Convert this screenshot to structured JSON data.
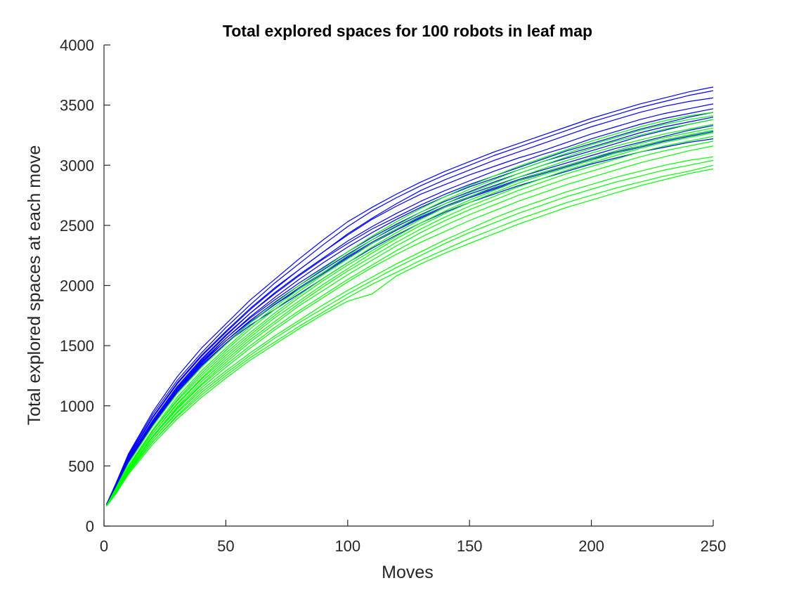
{
  "chart_data": {
    "type": "line",
    "title": "Total explored spaces for 100 robots in leaf map",
    "xlabel": "Moves",
    "ylabel": "Total explored spaces at each move",
    "xlim": [
      0,
      250
    ],
    "ylim": [
      0,
      4000
    ],
    "xticks": [
      0,
      50,
      100,
      150,
      200,
      250
    ],
    "yticks": [
      0,
      500,
      1000,
      1500,
      2000,
      2500,
      3000,
      3500,
      4000
    ],
    "grid": false,
    "legend": "none",
    "colors": {
      "blue": "#0000ff",
      "green": "#00ff00",
      "axis": "#262626"
    },
    "x": [
      1,
      5,
      10,
      20,
      30,
      40,
      50,
      60,
      70,
      80,
      90,
      100,
      110,
      120,
      130,
      140,
      150,
      160,
      170,
      180,
      190,
      200,
      210,
      220,
      230,
      240,
      250
    ],
    "series": [
      {
        "color": "blue",
        "values": [
          180,
          360,
          600,
          950,
          1240,
          1480,
          1680,
          1880,
          2050,
          2220,
          2380,
          2530,
          2650,
          2760,
          2860,
          2950,
          3030,
          3110,
          3180,
          3250,
          3320,
          3390,
          3450,
          3510,
          3560,
          3610,
          3650
        ]
      },
      {
        "color": "blue",
        "values": [
          180,
          350,
          590,
          930,
          1210,
          1440,
          1650,
          1840,
          2020,
          2180,
          2340,
          2490,
          2620,
          2730,
          2830,
          2920,
          3000,
          3080,
          3150,
          3220,
          3290,
          3360,
          3420,
          3480,
          3530,
          3580,
          3620
        ]
      },
      {
        "color": "blue",
        "values": [
          170,
          340,
          570,
          900,
          1180,
          1410,
          1610,
          1800,
          1970,
          2130,
          2280,
          2430,
          2560,
          2680,
          2790,
          2880,
          2960,
          3040,
          3110,
          3180,
          3250,
          3320,
          3380,
          3440,
          3490,
          3530,
          3560
        ]
      },
      {
        "color": "blue",
        "values": [
          180,
          355,
          580,
          910,
          1190,
          1420,
          1620,
          1810,
          1980,
          2130,
          2280,
          2420,
          2550,
          2660,
          2760,
          2840,
          2920,
          2990,
          3060,
          3120,
          3190,
          3260,
          3320,
          3380,
          3430,
          3470,
          3510
        ]
      },
      {
        "color": "blue",
        "values": [
          170,
          330,
          550,
          870,
          1150,
          1380,
          1580,
          1770,
          1940,
          2090,
          2230,
          2370,
          2490,
          2600,
          2700,
          2790,
          2870,
          2950,
          3020,
          3090,
          3150,
          3220,
          3280,
          3340,
          3390,
          3430,
          3470
        ]
      },
      {
        "color": "blue",
        "values": [
          180,
          345,
          560,
          880,
          1160,
          1390,
          1590,
          1770,
          1930,
          2080,
          2220,
          2350,
          2470,
          2570,
          2670,
          2760,
          2840,
          2910,
          2980,
          3050,
          3120,
          3180,
          3240,
          3300,
          3350,
          3400,
          3440
        ]
      },
      {
        "color": "blue",
        "values": [
          170,
          320,
          540,
          860,
          1130,
          1360,
          1560,
          1740,
          1900,
          2050,
          2190,
          2320,
          2440,
          2550,
          2650,
          2740,
          2820,
          2890,
          2960,
          3030,
          3090,
          3150,
          3210,
          3270,
          3320,
          3360,
          3400
        ]
      },
      {
        "color": "blue",
        "values": [
          180,
          340,
          560,
          870,
          1140,
          1370,
          1560,
          1730,
          1880,
          2020,
          2150,
          2280,
          2400,
          2510,
          2610,
          2700,
          2780,
          2860,
          2930,
          3000,
          3060,
          3120,
          3180,
          3240,
          3290,
          3340,
          3380
        ]
      },
      {
        "color": "blue",
        "values": [
          170,
          325,
          545,
          860,
          1130,
          1350,
          1540,
          1710,
          1860,
          2000,
          2130,
          2260,
          2380,
          2490,
          2590,
          2680,
          2760,
          2830,
          2900,
          2960,
          3020,
          3080,
          3140,
          3190,
          3240,
          3290,
          3330
        ]
      },
      {
        "color": "blue",
        "values": [
          180,
          335,
          555,
          870,
          1140,
          1360,
          1540,
          1700,
          1840,
          1970,
          2100,
          2230,
          2350,
          2460,
          2560,
          2650,
          2730,
          2800,
          2870,
          2930,
          2990,
          3050,
          3100,
          3150,
          3200,
          3240,
          3280
        ]
      },
      {
        "color": "blue",
        "values": [
          170,
          320,
          530,
          840,
          1110,
          1330,
          1520,
          1690,
          1840,
          1980,
          2110,
          2240,
          2360,
          2470,
          2570,
          2660,
          2740,
          2810,
          2880,
          2940,
          3000,
          3060,
          3110,
          3160,
          3210,
          3250,
          3290
        ]
      },
      {
        "color": "blue",
        "values": [
          180,
          330,
          540,
          850,
          1120,
          1340,
          1520,
          1670,
          1800,
          1930,
          2060,
          2190,
          2310,
          2420,
          2520,
          2610,
          2690,
          2760,
          2830,
          2890,
          2950,
          3010,
          3060,
          3110,
          3150,
          3190,
          3220
        ]
      },
      {
        "color": "green",
        "values": [
          170,
          320,
          520,
          830,
          1100,
          1320,
          1510,
          1690,
          1850,
          2000,
          2140,
          2280,
          2410,
          2530,
          2640,
          2740,
          2830,
          2910,
          2990,
          3060,
          3130,
          3200,
          3260,
          3320,
          3370,
          3410,
          3440
        ]
      },
      {
        "color": "green",
        "values": [
          170,
          310,
          500,
          800,
          1070,
          1290,
          1480,
          1660,
          1820,
          1970,
          2110,
          2250,
          2380,
          2500,
          2610,
          2710,
          2800,
          2880,
          2960,
          3030,
          3100,
          3170,
          3230,
          3290,
          3340,
          3380,
          3410
        ]
      },
      {
        "color": "green",
        "values": [
          170,
          300,
          490,
          790,
          1050,
          1270,
          1460,
          1640,
          1800,
          1950,
          2090,
          2220,
          2350,
          2470,
          2580,
          2680,
          2770,
          2850,
          2930,
          3000,
          3070,
          3140,
          3200,
          3250,
          3300,
          3340,
          3380
        ]
      },
      {
        "color": "green",
        "values": [
          170,
          305,
          495,
          790,
          1040,
          1250,
          1440,
          1610,
          1770,
          1920,
          2060,
          2190,
          2320,
          2440,
          2550,
          2650,
          2740,
          2820,
          2900,
          2970,
          3040,
          3100,
          3160,
          3210,
          3260,
          3300,
          3340
        ]
      },
      {
        "color": "green",
        "values": [
          170,
          295,
          480,
          770,
          1020,
          1230,
          1420,
          1590,
          1750,
          1900,
          2040,
          2170,
          2290,
          2410,
          2520,
          2620,
          2710,
          2790,
          2870,
          2940,
          3000,
          3060,
          3120,
          3180,
          3230,
          3270,
          3310
        ]
      },
      {
        "color": "green",
        "values": [
          170,
          300,
          485,
          770,
          1010,
          1220,
          1400,
          1570,
          1730,
          1870,
          2010,
          2140,
          2270,
          2390,
          2500,
          2600,
          2690,
          2770,
          2850,
          2920,
          2980,
          3040,
          3100,
          3160,
          3210,
          3250,
          3290
        ]
      },
      {
        "color": "green",
        "values": [
          170,
          290,
          470,
          750,
          990,
          1200,
          1380,
          1550,
          1700,
          1850,
          1990,
          2120,
          2240,
          2360,
          2470,
          2570,
          2660,
          2740,
          2820,
          2890,
          2960,
          3020,
          3080,
          3140,
          3190,
          3230,
          3270
        ]
      },
      {
        "color": "green",
        "values": [
          170,
          285,
          460,
          740,
          980,
          1180,
          1360,
          1530,
          1680,
          1830,
          1960,
          2090,
          2210,
          2330,
          2440,
          2540,
          2630,
          2710,
          2790,
          2860,
          2930,
          2990,
          3050,
          3110,
          3160,
          3200,
          3240
        ]
      },
      {
        "color": "green",
        "values": [
          170,
          290,
          465,
          740,
          970,
          1170,
          1340,
          1500,
          1650,
          1790,
          1920,
          2050,
          2170,
          2290,
          2400,
          2500,
          2590,
          2670,
          2750,
          2820,
          2890,
          2950,
          3010,
          3070,
          3120,
          3160,
          3200
        ]
      },
      {
        "color": "green",
        "values": [
          170,
          280,
          450,
          720,
          950,
          1150,
          1320,
          1480,
          1630,
          1770,
          1900,
          2030,
          2150,
          2260,
          2360,
          2450,
          2540,
          2620,
          2700,
          2770,
          2840,
          2900,
          2960,
          3020,
          3070,
          3120,
          3160
        ]
      },
      {
        "color": "green",
        "values": [
          170,
          285,
          455,
          720,
          940,
          1130,
          1290,
          1440,
          1580,
          1710,
          1840,
          1960,
          2070,
          2180,
          2280,
          2380,
          2470,
          2560,
          2640,
          2710,
          2780,
          2840,
          2900,
          2950,
          3000,
          3040,
          3070
        ]
      },
      {
        "color": "green",
        "values": [
          170,
          280,
          445,
          700,
          920,
          1110,
          1270,
          1420,
          1560,
          1690,
          1810,
          1930,
          2040,
          2150,
          2250,
          2350,
          2440,
          2520,
          2600,
          2670,
          2740,
          2800,
          2860,
          2910,
          2960,
          3000,
          3040
        ]
      },
      {
        "color": "green",
        "values": [
          170,
          275,
          440,
          700,
          910,
          1090,
          1250,
          1400,
          1530,
          1660,
          1780,
          1900,
          2010,
          2110,
          2210,
          2300,
          2390,
          2470,
          2550,
          2620,
          2690,
          2750,
          2810,
          2860,
          2910,
          2950,
          3000
        ]
      },
      {
        "color": "green",
        "values": [
          165,
          270,
          430,
          680,
          890,
          1070,
          1230,
          1380,
          1510,
          1640,
          1760,
          1870,
          1930,
          2080,
          2180,
          2270,
          2350,
          2430,
          2510,
          2580,
          2650,
          2710,
          2770,
          2830,
          2880,
          2930,
          2970
        ]
      }
    ]
  }
}
